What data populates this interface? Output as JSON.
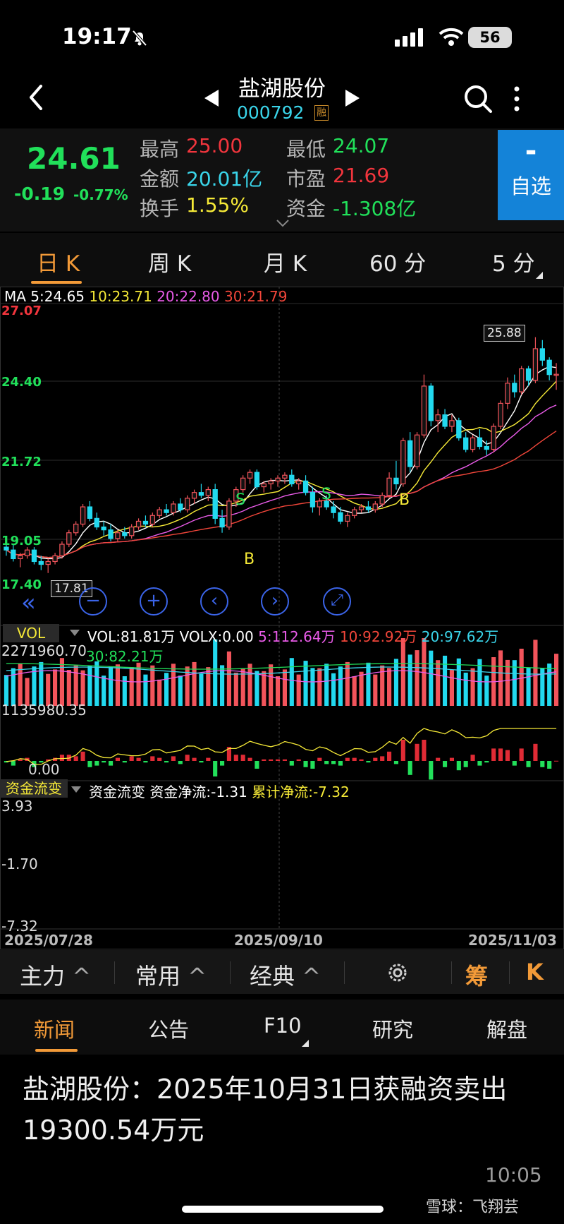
{
  "status": {
    "time": "19:17",
    "battery": "56"
  },
  "header": {
    "name": "盐湖股份",
    "code": "000792",
    "rong": "融"
  },
  "quote": {
    "price": "24.61",
    "change": "-0.19",
    "change_pct": "-0.77%",
    "high_label": "最高",
    "high": "25.00",
    "low_label": "最低",
    "low": "24.07",
    "amount_label": "金额",
    "amount": "20.01亿",
    "pe_label": "市盈",
    "pe": "21.69",
    "turnover_label": "换手",
    "turnover": "1.55%",
    "fund_label": "资金",
    "fund": "-1.308亿",
    "watch_minus": "-",
    "watch_label": "自选"
  },
  "period_tabs": [
    "日 K",
    "周 K",
    "月 K",
    "60 分",
    "5 分"
  ],
  "ma_legend": {
    "prefix": "MA",
    "ma5": "5:24.65",
    "ma10": "10:23.71",
    "ma20": "20:22.80",
    "ma30": "30:21.79"
  },
  "price_axis": [
    "27.07",
    "24.40",
    "21.72",
    "19.05",
    "17.40"
  ],
  "chart_marks": {
    "high_tag": "25.88",
    "low_tag": "17.81",
    "s1": "S",
    "s2": "S",
    "b1": "B",
    "b2": "B"
  },
  "volume": {
    "button": "VOL",
    "legend_vol": "VOL:81.81万",
    "legend_volx": "VOLX:0.00",
    "legend_5": "5:112.64万",
    "legend_10": "10:92.92万",
    "legend_20": "20:97.62万",
    "legend_30": "30:82.21万",
    "axis_top": "2271960.70",
    "axis_mid": "1135980.35",
    "axis_zero": "0.00"
  },
  "fund_flow": {
    "button": "资金流变",
    "legend_name": "资金流变",
    "legend_net": "资金净流:-1.31",
    "legend_cum": "累计净流:-7.32",
    "axis_top": "3.93",
    "axis_mid": "-1.70",
    "axis_bottom": "-7.32"
  },
  "dates": [
    "2025/07/28",
    "2025/09/10",
    "2025/11/03"
  ],
  "bottom_bar": {
    "main": "主力",
    "common": "常用",
    "classic": "经典",
    "chou": "筹",
    "k": "K"
  },
  "news_tabs": [
    "新闻",
    "公告",
    "F10",
    "研究",
    "解盘"
  ],
  "news": {
    "headline": "盐湖股份：2025年10月31日获融资卖出19300.54万元",
    "time": "10:05"
  },
  "watermark": "雪球：飞翔芸",
  "chart_data": {
    "type": "candlestick",
    "price_axis_range": [
      17.4,
      27.07
    ],
    "ohlc": [
      [
        18.6,
        18.9,
        18.3,
        18.5
      ],
      [
        18.5,
        18.7,
        18.1,
        18.2
      ],
      [
        18.2,
        18.4,
        17.9,
        18.3
      ],
      [
        18.3,
        18.6,
        18.2,
        18.5
      ],
      [
        18.5,
        18.6,
        18.0,
        18.1
      ],
      [
        18.1,
        18.3,
        17.8,
        18.0
      ],
      [
        18.0,
        18.2,
        17.7,
        18.1
      ],
      [
        18.1,
        18.4,
        18.0,
        18.3
      ],
      [
        18.3,
        18.8,
        18.2,
        18.7
      ],
      [
        18.7,
        19.2,
        18.6,
        19.1
      ],
      [
        19.1,
        19.5,
        19.0,
        19.4
      ],
      [
        19.4,
        20.1,
        19.3,
        20.0
      ],
      [
        20.0,
        20.2,
        19.5,
        19.6
      ],
      [
        19.6,
        19.8,
        19.2,
        19.3
      ],
      [
        19.3,
        19.5,
        19.0,
        19.2
      ],
      [
        19.2,
        19.4,
        18.8,
        18.9
      ],
      [
        18.9,
        19.2,
        18.8,
        19.1
      ],
      [
        19.1,
        19.3,
        18.9,
        19.0
      ],
      [
        19.0,
        19.4,
        18.9,
        19.3
      ],
      [
        19.3,
        19.6,
        19.2,
        19.5
      ],
      [
        19.5,
        19.7,
        19.3,
        19.4
      ],
      [
        19.4,
        19.8,
        19.3,
        19.7
      ],
      [
        19.7,
        20.0,
        19.6,
        19.9
      ],
      [
        19.9,
        20.1,
        19.7,
        19.8
      ],
      [
        19.8,
        20.2,
        19.7,
        20.1
      ],
      [
        20.1,
        20.3,
        19.8,
        19.9
      ],
      [
        19.9,
        20.4,
        19.8,
        20.3
      ],
      [
        20.3,
        20.6,
        20.1,
        20.5
      ],
      [
        20.5,
        20.8,
        20.3,
        20.4
      ],
      [
        20.4,
        20.7,
        20.2,
        20.6
      ],
      [
        20.6,
        20.8,
        19.4,
        19.6
      ],
      [
        19.6,
        19.9,
        19.1,
        19.3
      ],
      [
        19.3,
        20.3,
        19.2,
        20.2
      ],
      [
        20.2,
        20.7,
        20.0,
        20.6
      ],
      [
        20.6,
        21.1,
        20.5,
        21.0
      ],
      [
        21.0,
        21.3,
        20.8,
        21.2
      ],
      [
        21.2,
        21.3,
        20.6,
        20.7
      ],
      [
        20.7,
        20.9,
        20.5,
        20.8
      ],
      [
        20.8,
        21.0,
        20.6,
        20.9
      ],
      [
        20.9,
        21.1,
        20.7,
        21.0
      ],
      [
        21.0,
        21.2,
        20.8,
        21.1
      ],
      [
        21.1,
        21.3,
        20.7,
        20.8
      ],
      [
        20.8,
        21.0,
        20.6,
        20.9
      ],
      [
        20.9,
        21.1,
        20.4,
        20.5
      ],
      [
        20.5,
        20.7,
        19.8,
        20.0
      ],
      [
        20.0,
        20.3,
        19.7,
        20.2
      ],
      [
        20.2,
        20.4,
        19.9,
        20.0
      ],
      [
        20.0,
        20.2,
        19.6,
        19.8
      ],
      [
        19.8,
        20.0,
        19.4,
        19.5
      ],
      [
        19.5,
        19.8,
        19.3,
        19.7
      ],
      [
        19.7,
        20.0,
        19.6,
        19.9
      ],
      [
        19.9,
        20.1,
        19.8,
        20.0
      ],
      [
        20.0,
        20.2,
        19.8,
        19.9
      ],
      [
        19.9,
        20.2,
        19.8,
        20.1
      ],
      [
        20.1,
        20.5,
        20.0,
        20.4
      ],
      [
        20.4,
        21.2,
        20.3,
        21.0
      ],
      [
        21.0,
        21.6,
        20.6,
        20.8
      ],
      [
        20.8,
        22.4,
        20.7,
        22.3
      ],
      [
        22.3,
        22.6,
        21.2,
        21.4
      ],
      [
        21.4,
        22.6,
        21.3,
        22.5
      ],
      [
        22.5,
        24.6,
        22.4,
        24.2
      ],
      [
        24.2,
        24.3,
        22.8,
        23.0
      ],
      [
        23.0,
        23.4,
        22.6,
        23.2
      ],
      [
        23.2,
        23.4,
        22.7,
        22.8
      ],
      [
        22.8,
        23.2,
        22.6,
        23.0
      ],
      [
        23.0,
        23.1,
        22.3,
        22.4
      ],
      [
        22.4,
        22.6,
        21.9,
        22.0
      ],
      [
        22.0,
        22.5,
        21.9,
        22.4
      ],
      [
        22.4,
        22.7,
        22.0,
        22.1
      ],
      [
        22.1,
        22.3,
        21.8,
        22.0
      ],
      [
        22.0,
        22.9,
        21.9,
        22.8
      ],
      [
        22.8,
        23.7,
        22.7,
        23.6
      ],
      [
        23.6,
        24.5,
        23.4,
        24.3
      ],
      [
        24.3,
        24.6,
        23.8,
        24.0
      ],
      [
        24.0,
        24.9,
        23.9,
        24.8
      ],
      [
        24.8,
        24.9,
        24.2,
        24.4
      ],
      [
        24.4,
        25.9,
        24.3,
        25.5
      ],
      [
        25.5,
        25.8,
        24.9,
        25.1
      ],
      [
        25.1,
        25.2,
        24.4,
        24.6
      ],
      [
        24.6,
        25.0,
        24.07,
        24.61
      ]
    ]
  }
}
